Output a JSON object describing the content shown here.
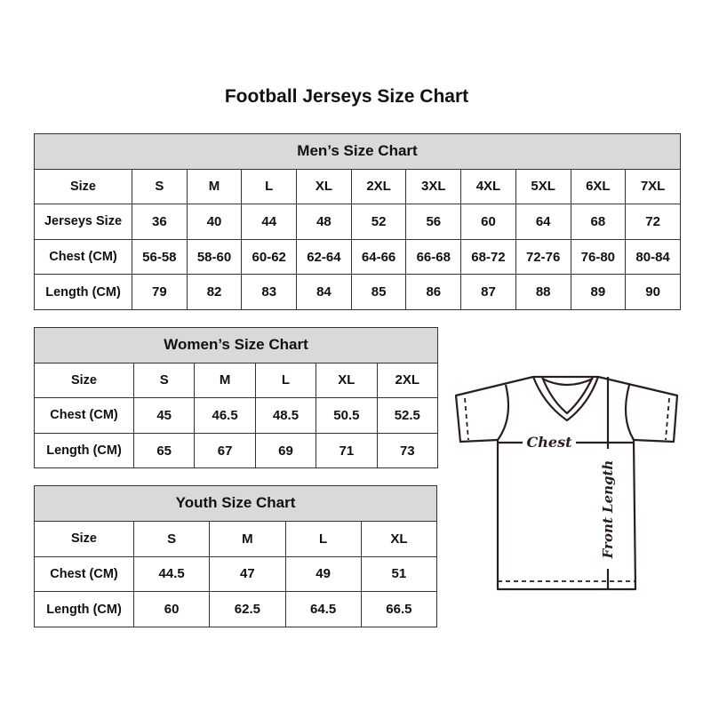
{
  "title": "Football Jerseys Size Chart",
  "men": {
    "title": "Men’s Size Chart",
    "rows": [
      {
        "label": "Size",
        "values": [
          "S",
          "M",
          "L",
          "XL",
          "2XL",
          "3XL",
          "4XL",
          "5XL",
          "6XL",
          "7XL"
        ]
      },
      {
        "label": "Jerseys Size",
        "values": [
          "36",
          "40",
          "44",
          "48",
          "52",
          "56",
          "60",
          "64",
          "68",
          "72"
        ]
      },
      {
        "label": "Chest (CM)",
        "values": [
          "56-58",
          "58-60",
          "60-62",
          "62-64",
          "64-66",
          "66-68",
          "68-72",
          "72-76",
          "76-80",
          "80-84"
        ]
      },
      {
        "label": "Length (CM)",
        "values": [
          "79",
          "82",
          "83",
          "84",
          "85",
          "86",
          "87",
          "88",
          "89",
          "90"
        ]
      }
    ]
  },
  "women": {
    "title": "Women’s Size Chart",
    "rows": [
      {
        "label": "Size",
        "values": [
          "S",
          "M",
          "L",
          "XL",
          "2XL"
        ]
      },
      {
        "label": "Chest (CM)",
        "values": [
          "45",
          "46.5",
          "48.5",
          "50.5",
          "52.5"
        ]
      },
      {
        "label": "Length (CM)",
        "values": [
          "65",
          "67",
          "69",
          "71",
          "73"
        ]
      }
    ]
  },
  "youth": {
    "title": "Youth Size Chart",
    "rows": [
      {
        "label": "Size",
        "values": [
          "S",
          "M",
          "L",
          "XL"
        ]
      },
      {
        "label": "Chest (CM)",
        "values": [
          "44.5",
          "47",
          "49",
          "51"
        ]
      },
      {
        "label": "Length (CM)",
        "values": [
          "60",
          "62.5",
          "64.5",
          "66.5"
        ]
      }
    ]
  },
  "diagram": {
    "chest_label": "Chest",
    "length_label": "Front Length"
  },
  "colors": {
    "header_bg": "#d9d9d9",
    "border": "#333333"
  }
}
